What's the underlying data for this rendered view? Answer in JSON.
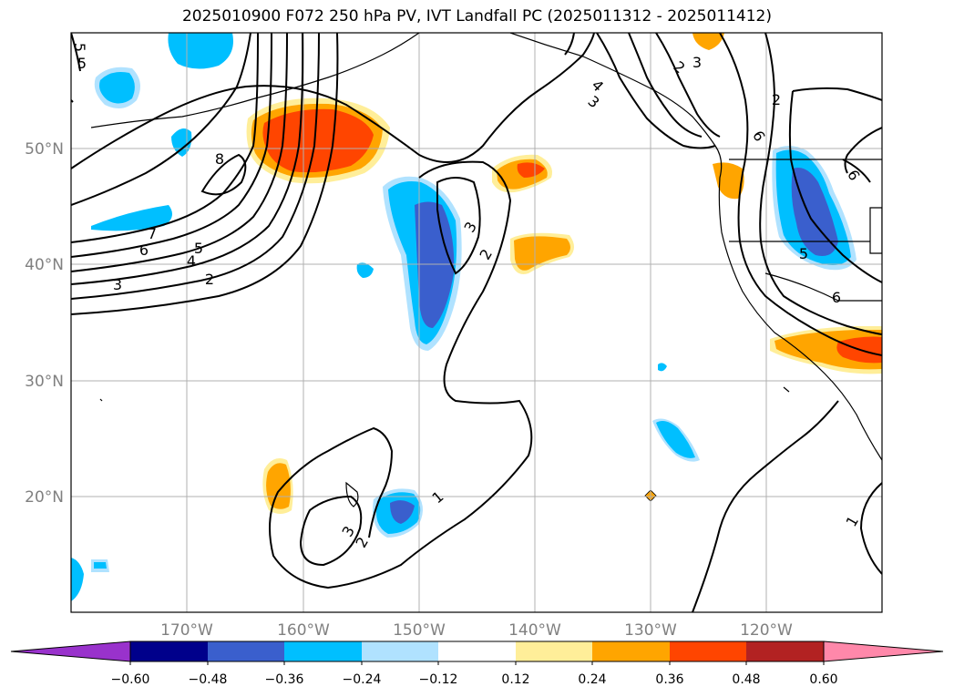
{
  "title": "2025010900 F072 250 hPa PV, IVT Landfall PC (2025011312 - 2025011412)",
  "map": {
    "lon_ticks": [
      "170°W",
      "160°W",
      "150°W",
      "140°W",
      "130°W",
      "120°W"
    ],
    "lat_ticks": [
      "50°N",
      "40°N",
      "30°N",
      "20°N"
    ],
    "contour_labels": [
      "5",
      "5",
      "4",
      "3",
      "2",
      "3",
      "2",
      "6",
      "8",
      "7",
      "6",
      "5",
      "4",
      "3",
      "2",
      "3",
      "2",
      "3",
      "2",
      "1",
      "1",
      "5",
      "6",
      "6"
    ],
    "fill_colors": {
      "deep_blue": "#3a5fcd",
      "cyan": "#00bfff",
      "orange": "#ffa500",
      "red_orange": "#ff4500",
      "light_yellow": "#ffee99"
    },
    "gridlines": true
  },
  "colorbar": {
    "tick_labels": [
      "−0.60",
      "−0.48",
      "−0.36",
      "−0.24",
      "−0.12",
      "0.12",
      "0.24",
      "0.36",
      "0.48",
      "0.60"
    ],
    "colors": [
      "#9932cc",
      "#00008b",
      "#3a5fcd",
      "#00bfff",
      "#b0e2ff",
      "#ffffff",
      "#ffee99",
      "#ffa500",
      "#ff4500",
      "#b22222",
      "#ff88aa"
    ]
  }
}
